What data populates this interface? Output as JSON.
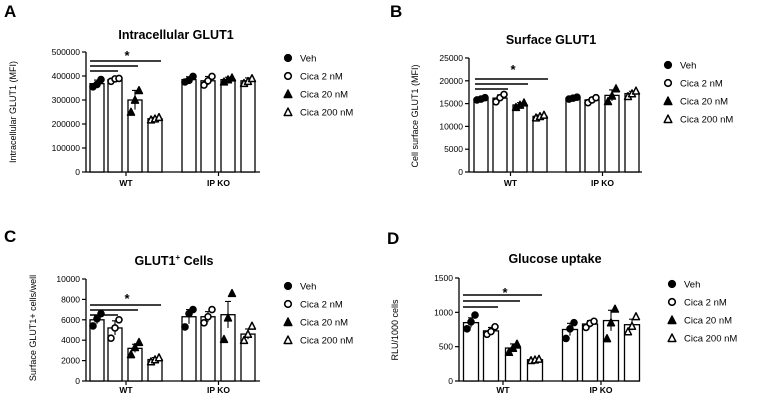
{
  "legend": {
    "entries": [
      {
        "label": "Veh",
        "marker": "filled-circle"
      },
      {
        "label": "Cica 2 nM",
        "marker": "open-circle"
      },
      {
        "label": "Cica 20 nM",
        "marker": "filled-triangle"
      },
      {
        "label": "Cica 200 nM",
        "marker": "open-triangle"
      }
    ]
  },
  "chart_data": [
    {
      "panel_letter": "A",
      "type": "bar",
      "title": "Intracellular GLUT1",
      "title_superscript": "",
      "ylabel": "Intracellular GLUT1 (MFI)",
      "xlabel": "",
      "groups": [
        "WT",
        "IP KO"
      ],
      "ylim": [
        0,
        500000
      ],
      "yticks": [
        "0",
        "100000",
        "200000",
        "300000",
        "400000",
        "500000"
      ],
      "significance": "*",
      "series": [
        {
          "name": "Veh",
          "values": [
            368000,
            385000
          ],
          "sem": [
            15000,
            12000
          ],
          "points": [
            [
              355000,
              365000,
              385000
            ],
            [
              375000,
              382000,
              398000
            ]
          ]
        },
        {
          "name": "Cica 2 nM",
          "values": [
            385000,
            380000
          ],
          "sem": [
            8000,
            18000
          ],
          "points": [
            [
              378000,
              388000,
              390000
            ],
            [
              362000,
              380000,
              398000
            ]
          ]
        },
        {
          "name": "Cica 20 nM",
          "values": [
            300000,
            385000
          ],
          "sem": [
            40000,
            10000
          ],
          "points": [
            [
              250000,
              300000,
              340000
            ],
            [
              376000,
              385000,
              393000
            ]
          ]
        },
        {
          "name": "Cica 200 nM",
          "values": [
            222000,
            380000
          ],
          "sem": [
            6000,
            12000
          ],
          "points": [
            [
              218000,
              222000,
              228000
            ],
            [
              370000,
              378000,
              390000
            ]
          ]
        }
      ]
    },
    {
      "panel_letter": "B",
      "type": "bar",
      "title": "Surface GLUT1",
      "title_superscript": "",
      "ylabel": "Cell surface GLUT1 (MFI)",
      "xlabel": "",
      "groups": [
        "WT",
        "IP KO"
      ],
      "ylim": [
        0,
        25000
      ],
      "yticks": [
        "0",
        "5000",
        "10000",
        "15000",
        "20000",
        "25000"
      ],
      "significance": "*",
      "series": [
        {
          "name": "Veh",
          "values": [
            16000,
            16200
          ],
          "sem": [
            300,
            200
          ],
          "points": [
            [
              15800,
              16000,
              16300
            ],
            [
              16000,
              16200,
              16400
            ]
          ]
        },
        {
          "name": "Cica 2 nM",
          "values": [
            16200,
            15800
          ],
          "sem": [
            700,
            500
          ],
          "points": [
            [
              15400,
              16300,
              17000
            ],
            [
              15200,
              15800,
              16300
            ]
          ]
        },
        {
          "name": "Cica 20 nM",
          "values": [
            14700,
            16800
          ],
          "sem": [
            500,
            1200
          ],
          "points": [
            [
              14200,
              14700,
              15200
            ],
            [
              15500,
              16700,
              18300
            ]
          ]
        },
        {
          "name": "Cica 200 nM",
          "values": [
            12200,
            17200
          ],
          "sem": [
            300,
            500
          ],
          "points": [
            [
              11900,
              12200,
              12500
            ],
            [
              16600,
              17200,
              17800
            ]
          ]
        }
      ]
    },
    {
      "panel_letter": "C",
      "type": "bar",
      "title": "GLUT1",
      "title_superscript": "+",
      "title_suffix": " Cells",
      "ylabel": "Surface GLUT1+ cells/well",
      "xlabel": "",
      "groups": [
        "WT",
        "IP KO"
      ],
      "ylim": [
        0,
        10000
      ],
      "yticks": [
        "0",
        "2000",
        "4000",
        "6000",
        "8000",
        "10000"
      ],
      "significance": "*",
      "series": [
        {
          "name": "Veh",
          "values": [
            6000,
            6300
          ],
          "sem": [
            400,
            700
          ],
          "points": [
            [
              5400,
              6100,
              6600
            ],
            [
              5300,
              6600,
              7000
            ]
          ]
        },
        {
          "name": "Cica 2 nM",
          "values": [
            5200,
            6300
          ],
          "sem": [
            700,
            500
          ],
          "points": [
            [
              4200,
              5200,
              6000
            ],
            [
              5700,
              6300,
              7000
            ]
          ]
        },
        {
          "name": "Cica 20 nM",
          "values": [
            3200,
            6500
          ],
          "sem": [
            400,
            1300
          ],
          "points": [
            [
              2600,
              3300,
              3800
            ],
            [
              4100,
              6200,
              8600
            ]
          ]
        },
        {
          "name": "Cica 200 nM",
          "values": [
            2100,
            4600
          ],
          "sem": [
            200,
            500
          ],
          "points": [
            [
              1900,
              2100,
              2300
            ],
            [
              4000,
              4600,
              5400
            ]
          ]
        }
      ]
    },
    {
      "panel_letter": "D",
      "type": "bar",
      "title": "Glucose uptake",
      "title_superscript": "",
      "ylabel": "RLU/1000 cells",
      "xlabel": "",
      "groups": [
        "WT",
        "IP KO"
      ],
      "ylim": [
        0,
        1500
      ],
      "yticks": [
        "0",
        "500",
        "1000",
        "1500"
      ],
      "significance": "*",
      "series": [
        {
          "name": "Veh",
          "values": [
            850,
            750
          ],
          "sem": [
            70,
            90
          ],
          "points": [
            [
              760,
              860,
              960
            ],
            [
              620,
              760,
              850
            ]
          ]
        },
        {
          "name": "Cica 2 nM",
          "values": [
            730,
            830
          ],
          "sem": [
            50,
            50
          ],
          "points": [
            [
              680,
              720,
              790
            ],
            [
              780,
              840,
              870
            ]
          ]
        },
        {
          "name": "Cica 20 nM",
          "values": [
            480,
            880
          ],
          "sem": [
            60,
            150
          ],
          "points": [
            [
              420,
              480,
              540
            ],
            [
              620,
              850,
              1050
            ]
          ]
        },
        {
          "name": "Cica 200 nM",
          "values": [
            310,
            820
          ],
          "sem": [
            10,
            80
          ],
          "points": [
            [
              300,
              310,
              320
            ],
            [
              720,
              800,
              940
            ]
          ]
        }
      ]
    }
  ]
}
